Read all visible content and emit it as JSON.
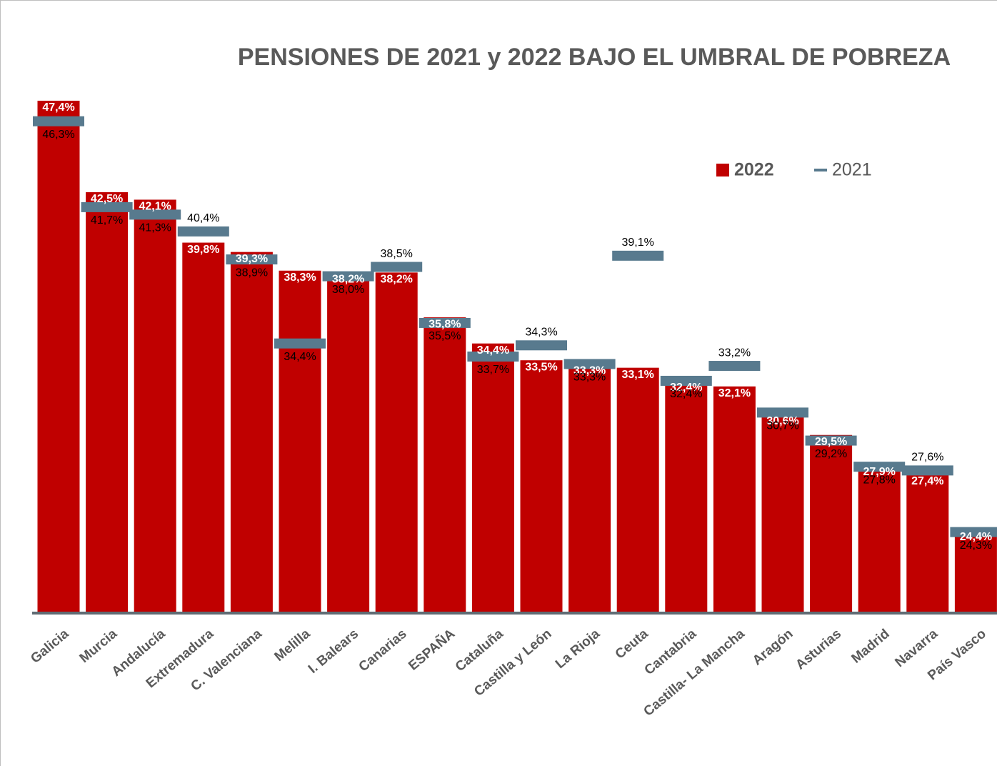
{
  "chart_data": {
    "type": "bar",
    "title": "PENSIONES DE 2021 y 2022 BAJO EL UMBRAL DE POBREZA",
    "categories": [
      "Galicia",
      "Murcia",
      "Andalucía",
      "Extremadura",
      "C. Valenciana",
      "Melilla",
      "I. Balears",
      "Canarias",
      "ESPAÑA",
      "Cataluña",
      "Castilla y León",
      "La Rioja",
      "Ceuta",
      "Cantabria",
      "Castilla- La Mancha",
      "Aragón",
      "Asturias",
      "Madrid",
      "Navarra",
      "País Vasco"
    ],
    "series": [
      {
        "name": "2022",
        "type": "bar",
        "color": "#c00000",
        "values": [
          47.4,
          42.5,
          42.1,
          39.8,
          39.3,
          38.3,
          38.2,
          38.2,
          35.8,
          34.4,
          33.5,
          33.3,
          33.1,
          32.4,
          32.1,
          30.6,
          29.5,
          27.9,
          27.4,
          24.4
        ],
        "value_labels": [
          "47,4%",
          "42,5%",
          "42,1%",
          "39,8%",
          "39,3%",
          "38,3%",
          "38,2%",
          "38,2%",
          "35,8%",
          "34,4%",
          "33,5%",
          "33,3%",
          "33,1%",
          "32,4%",
          "32,1%",
          "30,6%",
          "29,5%",
          "27,9%",
          "27,4%",
          "24,4%"
        ]
      },
      {
        "name": "2021",
        "type": "dash",
        "color": "#587a8e",
        "values": [
          46.3,
          41.7,
          41.3,
          40.4,
          38.9,
          34.4,
          38.0,
          38.5,
          35.5,
          33.7,
          34.3,
          33.3,
          39.1,
          32.4,
          33.2,
          30.7,
          29.2,
          27.8,
          27.6,
          24.3
        ],
        "value_labels": [
          "46,3%",
          "41,7%",
          "41,3%",
          "40,4%",
          "38,9%",
          "34,4%",
          "38,0%",
          "38,5%",
          "35,5%",
          "33,7%",
          "34,3%",
          "33,3%",
          "39,1%",
          "32,4%",
          "33,2%",
          "30,7%",
          "29,2%",
          "27,8%",
          "27,6%",
          "24,3%"
        ]
      }
    ],
    "ylim": [
      20,
      50
    ],
    "legend": "top-right"
  }
}
